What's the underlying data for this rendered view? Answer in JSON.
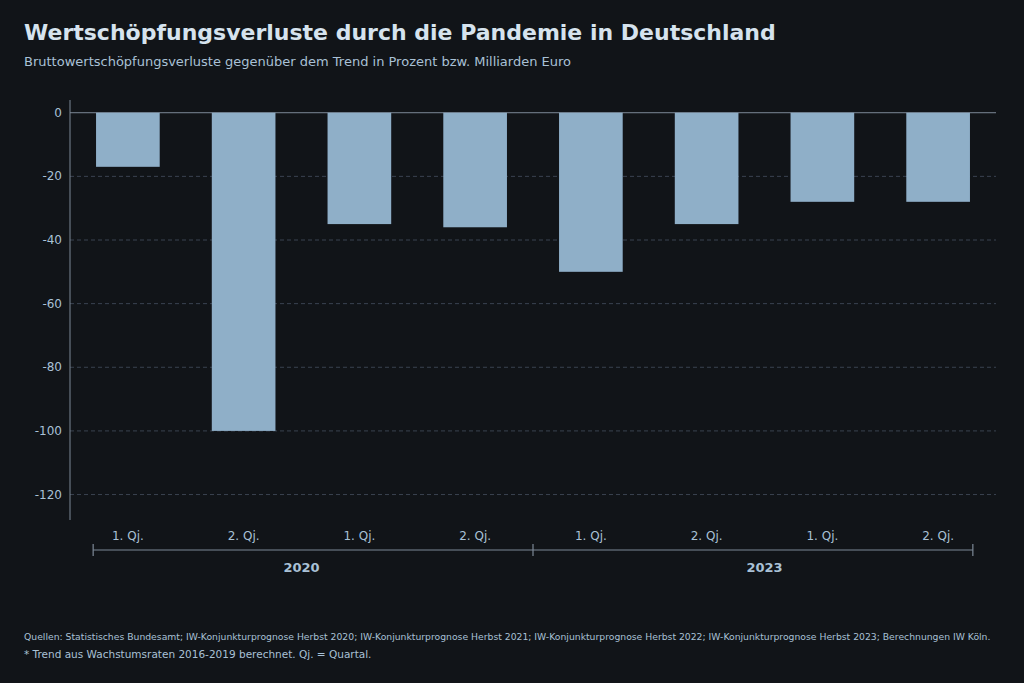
{
  "chart_data": {
    "type": "bar",
    "title": "Wertschöpfungsverluste durch  die Pandemie in Deutschland",
    "subtitle": "Bruttowertschöpfungsverluste gegenüber dem Trend in Prozent bzw. Milliarden Euro",
    "categories": [
      "1. Qj.",
      "2. Qj.",
      "1. Qj.",
      "2. Qj.",
      "1. Qj.",
      "2. Qj.",
      "1. Qj.",
      "2. Qj."
    ],
    "values": [
      -17,
      -100,
      -35,
      -36,
      -50,
      -35,
      -28,
      -28
    ],
    "color": "#8fafc8",
    "ylim": [
      -128,
      4
    ],
    "yticks": [
      0,
      -20,
      -40,
      -60,
      -80,
      -100,
      -120
    ],
    "grid": true,
    "annotations": [
      "2020",
      "2023"
    ],
    "footnotes": [
      "Quellen: Statistisches Bundesamt; IW-Konjunkturprognose Herbst 2020; IW-Konjunkturprognose Herbst 2021; IW-Konjunkturprognose Herbst 2022; IW-Konjunkturprognose Herbst 2023; Berechnungen IW Köln.",
      "* Trend aus Wachstumsraten 2016-2019 berechnet. Qj. = Quartal."
    ]
  }
}
